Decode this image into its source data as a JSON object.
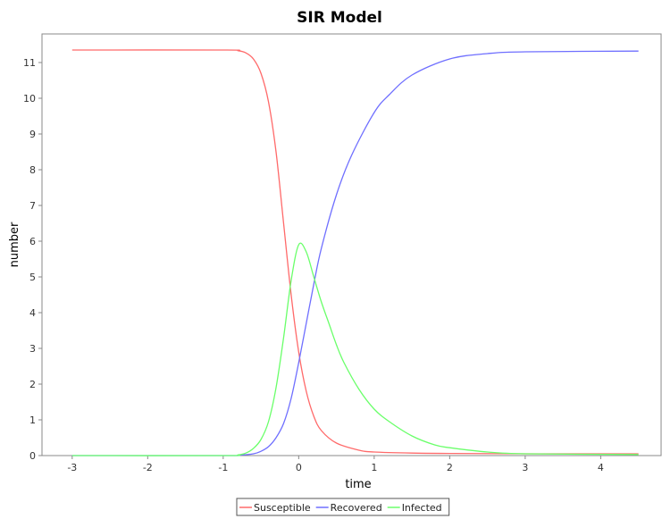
{
  "chart_data": {
    "type": "line",
    "title": "SIR Model",
    "xlabel": "time",
    "ylabel": "number",
    "xlim": [
      -3.4,
      4.8
    ],
    "ylim": [
      0,
      11.8
    ],
    "xticks": [
      -3,
      -2,
      -1,
      0,
      1,
      2,
      3,
      4
    ],
    "yticks": [
      0,
      1,
      2,
      3,
      4,
      5,
      6,
      7,
      8,
      9,
      10,
      11
    ],
    "grid": false,
    "legend_position": "bottom",
    "series": [
      {
        "name": "Susceptible",
        "color": "#ff6a6a",
        "x": [
          -3.0,
          -1.0,
          -0.8,
          -0.7,
          -0.6,
          -0.5,
          -0.4,
          -0.3,
          -0.2,
          -0.1,
          0.0,
          0.1,
          0.2,
          0.3,
          0.5,
          0.8,
          1.0,
          1.5,
          2.0,
          3.0,
          4.5
        ],
        "y": [
          11.35,
          11.35,
          11.33,
          11.27,
          11.1,
          10.7,
          9.9,
          8.5,
          6.5,
          4.5,
          2.9,
          1.8,
          1.1,
          0.7,
          0.35,
          0.15,
          0.1,
          0.07,
          0.06,
          0.05,
          0.05
        ]
      },
      {
        "name": "Recovered",
        "color": "#6f6fff",
        "x": [
          -3.0,
          -1.0,
          -0.8,
          -0.6,
          -0.5,
          -0.4,
          -0.3,
          -0.2,
          -0.1,
          0.0,
          0.1,
          0.2,
          0.3,
          0.5,
          0.7,
          1.0,
          1.2,
          1.5,
          2.0,
          2.5,
          3.0,
          4.5
        ],
        "y": [
          0.0,
          0.0,
          0.01,
          0.05,
          0.12,
          0.25,
          0.5,
          0.9,
          1.6,
          2.6,
          3.7,
          4.8,
          5.8,
          7.3,
          8.4,
          9.6,
          10.1,
          10.65,
          11.1,
          11.25,
          11.3,
          11.32
        ]
      },
      {
        "name": "Infected",
        "color": "#6aff6a",
        "x": [
          -3.0,
          -1.0,
          -0.8,
          -0.7,
          -0.6,
          -0.5,
          -0.4,
          -0.3,
          -0.2,
          -0.1,
          0.0,
          0.1,
          0.2,
          0.3,
          0.4,
          0.5,
          0.6,
          0.8,
          1.0,
          1.2,
          1.5,
          1.8,
          2.0,
          2.5,
          3.0,
          4.5
        ],
        "y": [
          0.0,
          0.0,
          0.02,
          0.07,
          0.2,
          0.45,
          0.95,
          1.9,
          3.3,
          4.9,
          5.9,
          5.7,
          5.0,
          4.3,
          3.7,
          3.1,
          2.6,
          1.85,
          1.3,
          0.95,
          0.55,
          0.3,
          0.22,
          0.1,
          0.05,
          0.03
        ]
      }
    ]
  }
}
